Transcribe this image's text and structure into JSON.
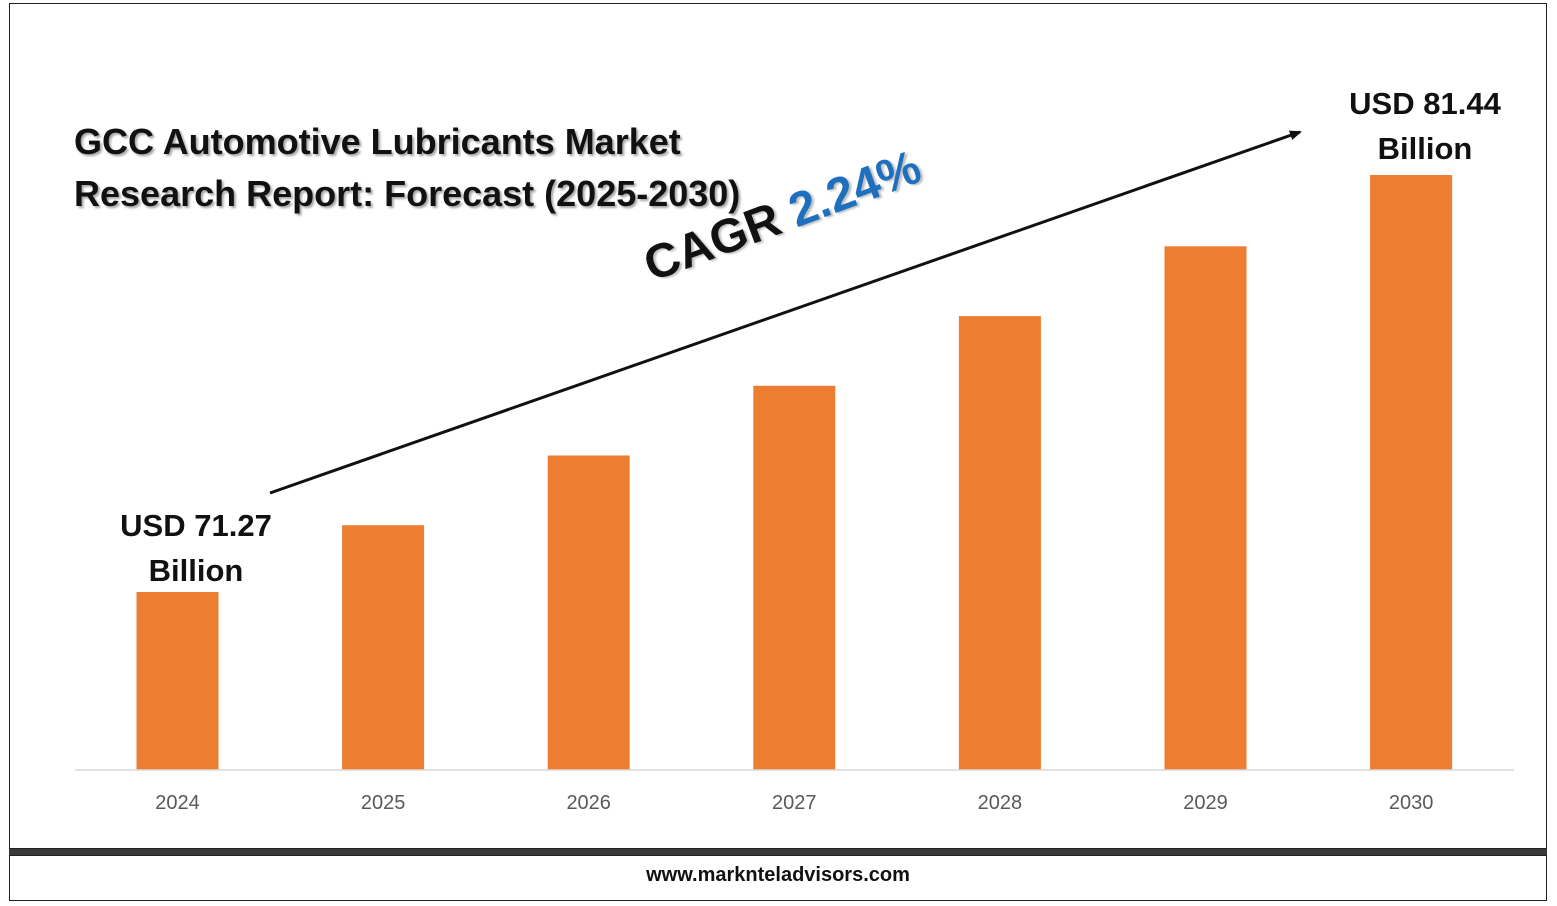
{
  "title": {
    "line1": "GCC Automotive Lubricants Market",
    "line2": "Research Report: Forecast (2025-2030)"
  },
  "annotations": {
    "start_value": "USD 71.27",
    "start_unit": "Billion",
    "end_value": "USD 81.44",
    "end_unit": "Billion",
    "cagr_label": "CAGR",
    "cagr_value": "2.24%"
  },
  "footer": {
    "url": "www.marknteladvisors.com"
  },
  "colors": {
    "bar": "#ed7d31",
    "cagr_value": "#1f6fbf",
    "axis": "#d9d9d9",
    "tick_label": "#595959"
  },
  "chart_data": {
    "type": "bar",
    "categories": [
      "2024",
      "2025",
      "2026",
      "2027",
      "2028",
      "2029",
      "2030"
    ],
    "values": [
      71.27,
      72.9,
      74.6,
      76.3,
      78.0,
      79.7,
      81.44
    ],
    "title": "GCC Automotive Lubricants Market Research Report: Forecast (2025-2030)",
    "xlabel": "",
    "ylabel": "",
    "unit": "USD Billion",
    "grid": false,
    "legend": "none"
  }
}
